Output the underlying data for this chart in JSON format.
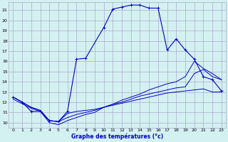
{
  "xlabel": "Graphe des températures (°c)",
  "bg_color": "#d4f1f1",
  "grid_color": "#aaaacc",
  "line_color": "#0000cc",
  "xlim": [
    -0.5,
    23.5
  ],
  "ylim": [
    9.5,
    21.8
  ],
  "xticks": [
    0,
    1,
    2,
    3,
    4,
    5,
    6,
    7,
    8,
    9,
    10,
    11,
    12,
    13,
    14,
    15,
    16,
    17,
    18,
    19,
    20,
    21,
    22,
    23
  ],
  "yticks": [
    10,
    11,
    12,
    13,
    14,
    15,
    16,
    17,
    18,
    19,
    20,
    21
  ],
  "curve1_x": [
    0,
    1,
    2,
    3,
    4,
    5,
    6,
    7,
    8,
    10,
    11,
    12,
    13,
    14,
    15,
    16,
    17,
    18,
    19,
    20,
    21,
    22,
    23
  ],
  "curve1_y": [
    12.5,
    12.0,
    11.1,
    11.1,
    10.2,
    10.1,
    11.1,
    16.2,
    16.3,
    19.3,
    21.1,
    21.3,
    21.5,
    21.5,
    21.2,
    21.2,
    17.1,
    18.2,
    17.1,
    16.2,
    14.5,
    14.2,
    13.1
  ],
  "curve2_x": [
    0,
    2,
    3,
    4,
    5,
    6,
    7,
    8,
    9,
    10,
    11,
    12,
    13,
    14,
    15,
    16,
    17,
    18,
    19,
    20,
    21,
    22,
    23
  ],
  "curve2_y": [
    12.5,
    11.5,
    11.2,
    10.2,
    10.1,
    10.9,
    11.1,
    11.2,
    11.3,
    11.5,
    11.7,
    11.9,
    12.1,
    12.3,
    12.5,
    12.7,
    12.9,
    13.0,
    13.1,
    13.2,
    13.3,
    13.0,
    13.0
  ],
  "curve3_x": [
    0,
    2,
    3,
    4,
    5,
    6,
    7,
    8,
    9,
    10,
    11,
    12,
    13,
    14,
    15,
    16,
    17,
    18,
    19,
    20,
    21,
    22,
    23
  ],
  "curve3_y": [
    12.5,
    11.5,
    11.2,
    10.2,
    10.1,
    10.5,
    10.8,
    11.0,
    11.2,
    11.5,
    11.8,
    12.0,
    12.3,
    12.6,
    12.8,
    13.0,
    13.2,
    13.4,
    13.5,
    14.8,
    15.2,
    14.5,
    14.2
  ],
  "curve4_x": [
    0,
    2,
    3,
    4,
    5,
    6,
    7,
    8,
    9,
    10,
    11,
    12,
    13,
    14,
    15,
    16,
    17,
    18,
    19,
    20,
    21,
    22,
    23
  ],
  "curve4_y": [
    12.3,
    11.4,
    11.1,
    10.0,
    9.8,
    10.2,
    10.5,
    10.8,
    11.0,
    11.5,
    11.8,
    12.2,
    12.5,
    12.8,
    13.2,
    13.5,
    13.8,
    14.0,
    14.5,
    16.0,
    15.3,
    14.8,
    14.2
  ]
}
